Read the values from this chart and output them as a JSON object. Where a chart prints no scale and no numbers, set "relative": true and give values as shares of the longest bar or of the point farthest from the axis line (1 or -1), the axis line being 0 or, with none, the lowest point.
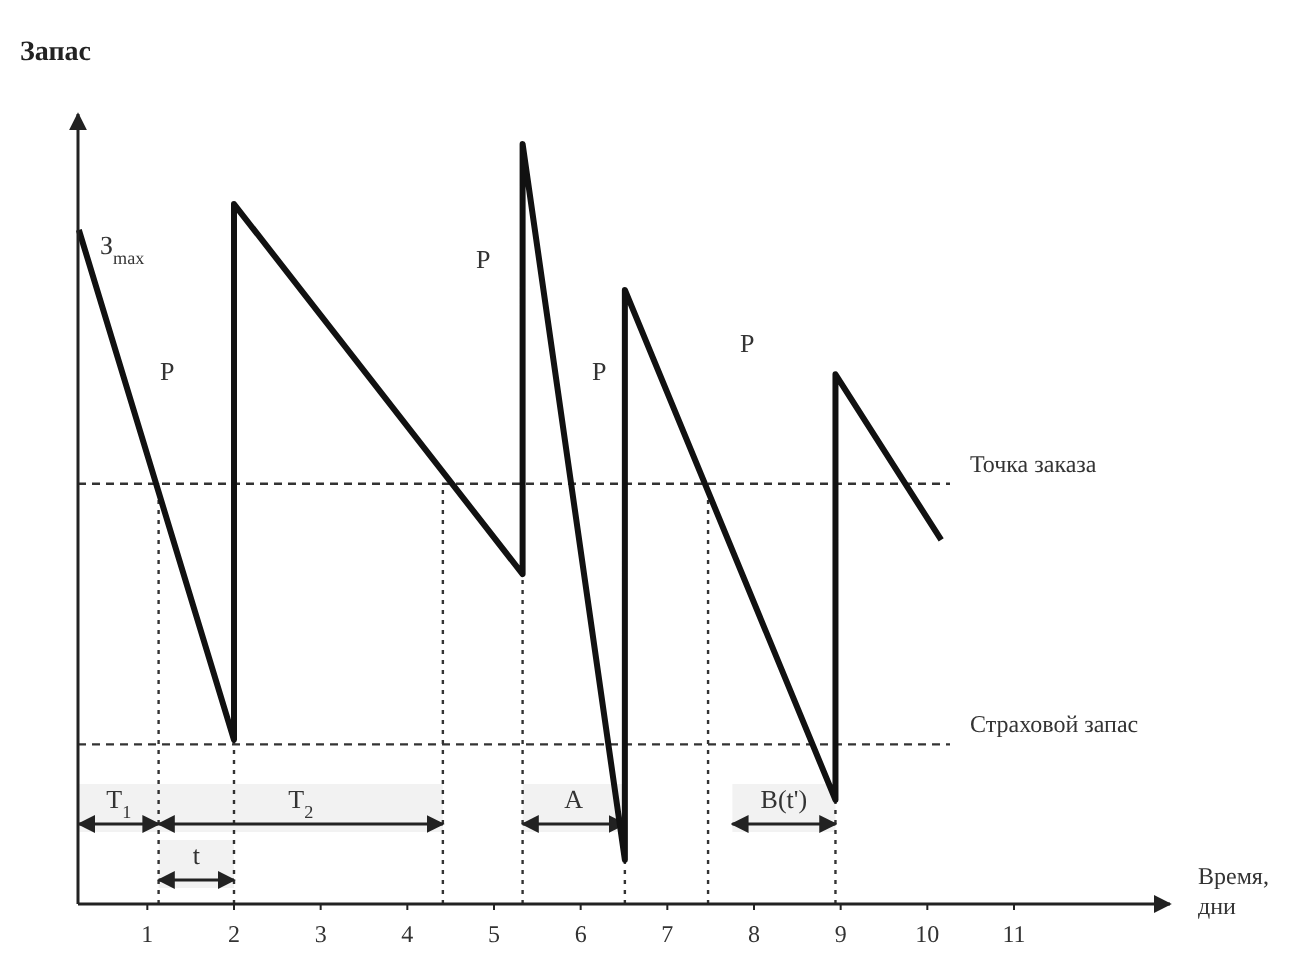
{
  "chart_data": {
    "type": "line",
    "relative": true,
    "ylabel": "Запас",
    "xlabel": "Время, дни",
    "xlim": [
      0.2,
      12.8
    ],
    "xticks": [
      1,
      2,
      3,
      4,
      5,
      6,
      7,
      8,
      9,
      10,
      11
    ],
    "series": [
      {
        "color": "#111111",
        "x": [
          0.21,
          2.0,
          2.0,
          5.33,
          5.33,
          6.51,
          6.51,
          8.94,
          8.94,
          10.16
        ],
        "values": [
          0.887,
          0.216,
          0.921,
          0.434,
          1,
          0.058,
          0.808,
          0.137,
          0.697,
          0.479
        ]
      }
    ],
    "ref_lines": [
      {
        "axis": "y",
        "value": 0.553,
        "label": "Точка заказа",
        "line_style": "dashed"
      },
      {
        "axis": "y",
        "value": 0.21,
        "label": "Страховой запас",
        "line_style": "dashed"
      },
      {
        "axis": "x",
        "value": 1.13,
        "line_style": "dotted"
      },
      {
        "axis": "x",
        "value": 2.0,
        "line_style": "dotted"
      },
      {
        "axis": "x",
        "value": 4.41,
        "line_style": "dotted"
      },
      {
        "axis": "x",
        "value": 5.33,
        "line_style": "dotted"
      },
      {
        "axis": "x",
        "value": 6.51,
        "line_style": "dotted"
      },
      {
        "axis": "x",
        "value": 7.47,
        "line_style": "dotted"
      },
      {
        "axis": "x",
        "value": 8.94,
        "line_style": "dotted"
      }
    ],
    "bands": [
      {
        "axis": "x",
        "from": 0.21,
        "to": 1.13,
        "label": "T$_{1}$"
      },
      {
        "axis": "x",
        "from": 1.13,
        "to": 4.41,
        "label": "T$_{2}$"
      },
      {
        "axis": "x",
        "from": 1.13,
        "to": 2.0,
        "label": "t"
      },
      {
        "axis": "x",
        "from": 5.33,
        "to": 6.51,
        "label": "A"
      },
      {
        "axis": "x",
        "from": 7.75,
        "to": 8.94,
        "label": "B(t')"
      }
    ],
    "annotations": [
      "З$_{max}$",
      "P",
      "P",
      "P",
      "P"
    ],
    "grid": false,
    "marker": "none",
    "line_style": "solid"
  }
}
